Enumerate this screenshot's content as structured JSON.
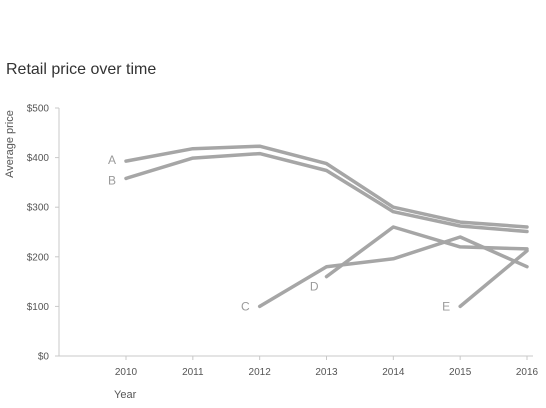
{
  "chart_data": {
    "type": "line",
    "title": "Retail price over time",
    "xlabel": "Year",
    "ylabel": "Average price",
    "x": [
      2010,
      2011,
      2012,
      2013,
      2014,
      2015,
      2016
    ],
    "xlim": [
      2009.0,
      2016.0
    ],
    "ylim": [
      0,
      500
    ],
    "y_ticks": [
      0,
      100,
      200,
      300,
      400,
      500
    ],
    "y_tick_labels": [
      "$0",
      "$100",
      "$200",
      "$300",
      "$400",
      "$500"
    ],
    "x_tick_labels": [
      "2010",
      "2011",
      "2012",
      "2013",
      "2014",
      "2015",
      "2016"
    ],
    "grid": false,
    "line_color": "#a6a6a6",
    "series": [
      {
        "name": "A",
        "points": [
          [
            2010,
            393
          ],
          [
            2011,
            418
          ],
          [
            2012,
            423
          ],
          [
            2013,
            388
          ],
          [
            2014,
            300
          ],
          [
            2015,
            270
          ],
          [
            2016,
            260
          ]
        ]
      },
      {
        "name": "B",
        "points": [
          [
            2010,
            358
          ],
          [
            2011,
            399
          ],
          [
            2012,
            408
          ],
          [
            2013,
            374
          ],
          [
            2014,
            291
          ],
          [
            2015,
            262
          ],
          [
            2016,
            251
          ]
        ]
      },
      {
        "name": "C",
        "points": [
          [
            2012,
            100
          ],
          [
            2013,
            180
          ],
          [
            2014,
            196
          ],
          [
            2015,
            240
          ],
          [
            2016,
            180
          ]
        ]
      },
      {
        "name": "D",
        "points": [
          [
            2013,
            160
          ],
          [
            2014,
            260
          ],
          [
            2015,
            220
          ],
          [
            2016,
            216
          ]
        ]
      },
      {
        "name": "E",
        "points": [
          [
            2015,
            100
          ],
          [
            2016,
            212
          ]
        ]
      }
    ]
  }
}
